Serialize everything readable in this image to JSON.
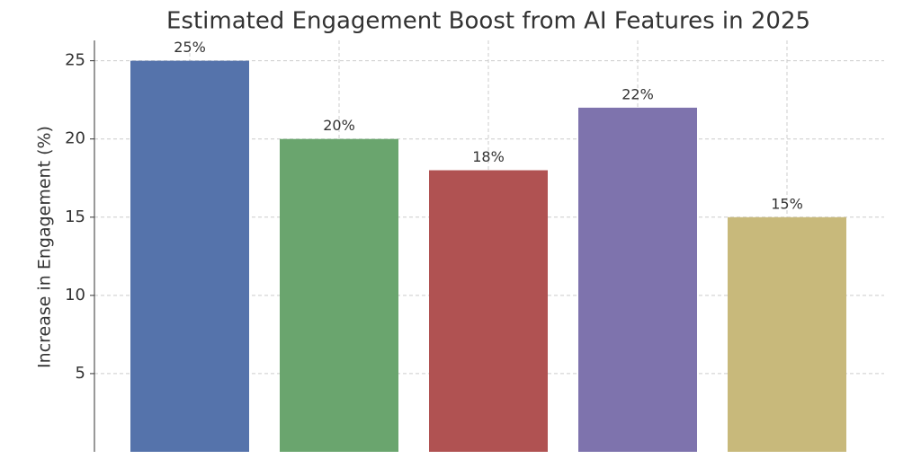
{
  "chart_data": {
    "type": "bar",
    "title": "Estimated Engagement Boost from AI Features in 2025",
    "y_label": "Increase in Engagement (%)",
    "categories": [
      null,
      null,
      null,
      null,
      null
    ],
    "values": [
      25,
      20,
      18,
      22,
      15
    ],
    "value_labels": [
      "25%",
      "20%",
      "18%",
      "22%",
      "15%"
    ],
    "colors": [
      "#5573ab",
      "#6aa56e",
      "#b05252",
      "#7e73ad",
      "#c8b97b"
    ],
    "ylim": [
      0,
      26.3
    ],
    "yticks": [
      5,
      10,
      15,
      20,
      25
    ],
    "grid": true
  }
}
